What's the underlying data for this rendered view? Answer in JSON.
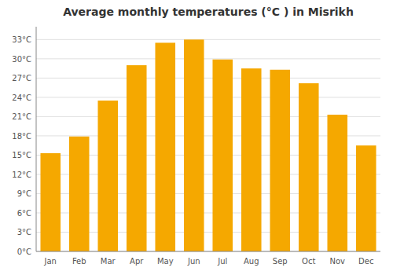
{
  "chart_data": {
    "type": "bar",
    "title": "Average monthly temperatures (°C ) in Misrikh",
    "categories": [
      "Jan",
      "Feb",
      "Mar",
      "Apr",
      "May",
      "Jun",
      "Jul",
      "Aug",
      "Sep",
      "Oct",
      "Nov",
      "Dec"
    ],
    "values": [
      15.3,
      17.9,
      23.5,
      29.0,
      32.5,
      33.0,
      29.9,
      28.5,
      28.3,
      26.2,
      21.3,
      16.5
    ],
    "color": "#F5A800",
    "ylim": [
      0,
      35.0
    ],
    "yticks": [
      {
        "value": 0,
        "label": "0°C"
      },
      {
        "value": 3,
        "label": "3°C"
      },
      {
        "value": 6,
        "label": "6°C"
      },
      {
        "value": 9,
        "label": "9°C"
      },
      {
        "value": 12,
        "label": "12°C"
      },
      {
        "value": 15,
        "label": "15°C"
      },
      {
        "value": 18,
        "label": "18°C"
      },
      {
        "value": 21,
        "label": "21°C"
      },
      {
        "value": 24,
        "label": "24°C"
      },
      {
        "value": 27,
        "label": "27°C"
      },
      {
        "value": 30,
        "label": "30°C"
      },
      {
        "value": 33,
        "label": "33°C"
      }
    ],
    "grid": true
  }
}
